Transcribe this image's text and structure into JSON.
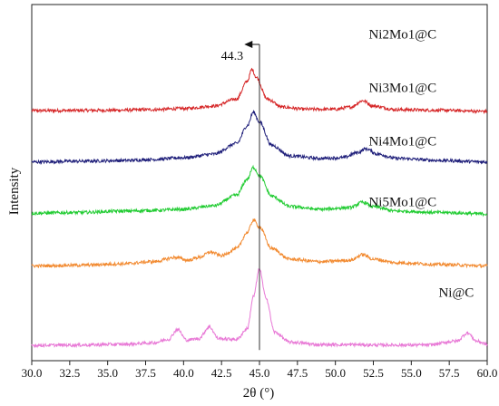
{
  "chart_data": {
    "type": "line",
    "title": "",
    "xlabel": "2θ (°)",
    "ylabel": "Intensity",
    "xlim": [
      30.0,
      60.0
    ],
    "ylim": [
      0,
      10
    ],
    "x_ticks": [
      "30.0",
      "32.5",
      "35.0",
      "37.5",
      "40.0",
      "42.5",
      "45.0",
      "47.5",
      "50.0",
      "52.5",
      "55.0",
      "57.5",
      "60.0"
    ],
    "grid": false,
    "legend": "none",
    "series": [
      {
        "name": "Ni2Mo1@C",
        "color": "#d62728",
        "label_at": [
          52.2,
          9.04
        ],
        "points": [
          [
            30.0,
            7.02
          ],
          [
            35.0,
            7.03
          ],
          [
            38.0,
            7.05
          ],
          [
            40.0,
            7.08
          ],
          [
            42.0,
            7.15
          ],
          [
            43.5,
            7.35
          ],
          [
            44.2,
            7.85
          ],
          [
            44.5,
            8.18
          ],
          [
            44.8,
            7.95
          ],
          [
            45.5,
            7.35
          ],
          [
            46.5,
            7.12
          ],
          [
            48.0,
            7.06
          ],
          [
            50.0,
            7.06
          ],
          [
            51.0,
            7.12
          ],
          [
            51.8,
            7.3
          ],
          [
            52.5,
            7.15
          ],
          [
            54.0,
            7.05
          ],
          [
            57.0,
            7.03
          ],
          [
            60.0,
            7.0
          ]
        ]
      },
      {
        "name": "Ni3Mo1@C",
        "color": "#1f1f7a",
        "label_at": [
          52.2,
          7.54
        ],
        "points": [
          [
            30.0,
            5.58
          ],
          [
            33.0,
            5.6
          ],
          [
            36.0,
            5.62
          ],
          [
            38.0,
            5.65
          ],
          [
            40.0,
            5.7
          ],
          [
            42.0,
            5.8
          ],
          [
            43.5,
            6.1
          ],
          [
            44.2,
            6.6
          ],
          [
            44.6,
            6.98
          ],
          [
            45.0,
            6.7
          ],
          [
            45.8,
            6.05
          ],
          [
            47.0,
            5.75
          ],
          [
            49.0,
            5.68
          ],
          [
            50.5,
            5.7
          ],
          [
            51.5,
            5.85
          ],
          [
            52.0,
            5.95
          ],
          [
            52.8,
            5.8
          ],
          [
            54.0,
            5.68
          ],
          [
            57.0,
            5.62
          ],
          [
            60.0,
            5.58
          ]
        ]
      },
      {
        "name": "Ni4Mo1@C",
        "color": "#22cc33",
        "label_at": [
          52.2,
          6.04
        ],
        "points": [
          [
            30.0,
            4.14
          ],
          [
            33.0,
            4.16
          ],
          [
            36.0,
            4.2
          ],
          [
            38.0,
            4.22
          ],
          [
            40.0,
            4.25
          ],
          [
            42.0,
            4.35
          ],
          [
            43.5,
            4.65
          ],
          [
            44.2,
            5.1
          ],
          [
            44.6,
            5.43
          ],
          [
            45.0,
            5.2
          ],
          [
            45.8,
            4.62
          ],
          [
            47.0,
            4.33
          ],
          [
            49.0,
            4.25
          ],
          [
            51.0,
            4.3
          ],
          [
            51.8,
            4.45
          ],
          [
            52.5,
            4.32
          ],
          [
            54.0,
            4.2
          ],
          [
            57.0,
            4.16
          ],
          [
            60.0,
            4.12
          ]
        ]
      },
      {
        "name": "Ni5Mo1@C",
        "color": "#f28a30",
        "label_at": [
          52.2,
          4.34
        ],
        "points": [
          [
            30.0,
            2.66
          ],
          [
            33.0,
            2.68
          ],
          [
            36.0,
            2.72
          ],
          [
            38.0,
            2.78
          ],
          [
            39.5,
            2.9
          ],
          [
            40.3,
            2.82
          ],
          [
            41.0,
            2.9
          ],
          [
            41.8,
            3.05
          ],
          [
            42.5,
            2.95
          ],
          [
            43.5,
            3.15
          ],
          [
            44.2,
            3.6
          ],
          [
            44.6,
            3.95
          ],
          [
            45.0,
            3.75
          ],
          [
            45.8,
            3.15
          ],
          [
            47.0,
            2.85
          ],
          [
            49.0,
            2.78
          ],
          [
            51.0,
            2.82
          ],
          [
            51.8,
            2.98
          ],
          [
            52.5,
            2.85
          ],
          [
            54.0,
            2.75
          ],
          [
            57.0,
            2.7
          ],
          [
            60.0,
            2.66
          ]
        ]
      },
      {
        "name": "Ni@C",
        "color": "#e879d6",
        "label_at": [
          56.8,
          1.79
        ],
        "points": [
          [
            30.0,
            0.43
          ],
          [
            33.0,
            0.44
          ],
          [
            36.0,
            0.46
          ],
          [
            38.0,
            0.5
          ],
          [
            39.0,
            0.6
          ],
          [
            39.6,
            0.88
          ],
          [
            40.2,
            0.58
          ],
          [
            41.0,
            0.62
          ],
          [
            41.7,
            0.95
          ],
          [
            42.3,
            0.62
          ],
          [
            43.5,
            0.6
          ],
          [
            44.2,
            0.9
          ],
          [
            44.6,
            1.8
          ],
          [
            45.0,
            2.58
          ],
          [
            45.4,
            1.8
          ],
          [
            46.0,
            0.8
          ],
          [
            47.0,
            0.52
          ],
          [
            49.0,
            0.45
          ],
          [
            51.0,
            0.45
          ],
          [
            53.0,
            0.44
          ],
          [
            56.0,
            0.44
          ],
          [
            58.0,
            0.55
          ],
          [
            58.7,
            0.78
          ],
          [
            59.3,
            0.55
          ],
          [
            60.0,
            0.46
          ]
        ]
      }
    ],
    "annotations": [
      {
        "text": "44.3",
        "x": 43.2,
        "y": 8.45
      }
    ],
    "reference_line": {
      "x": 45.0,
      "arrow_to_x": 44.0
    }
  }
}
